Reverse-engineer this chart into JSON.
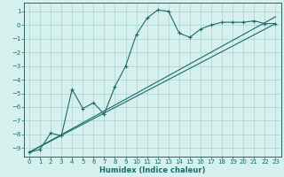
{
  "xlabel": "Humidex (Indice chaleur)",
  "bg_color": "#d6f0ee",
  "grid_color": "#b2d8d4",
  "line_color": "#1a6b6b",
  "xlim": [
    -0.5,
    23.5
  ],
  "ylim": [
    -9.6,
    1.6
  ],
  "yticks": [
    1,
    0,
    -1,
    -2,
    -3,
    -4,
    -5,
    -6,
    -7,
    -8,
    -9
  ],
  "xticks": [
    0,
    1,
    2,
    3,
    4,
    5,
    6,
    7,
    8,
    9,
    10,
    11,
    12,
    13,
    14,
    15,
    16,
    17,
    18,
    19,
    20,
    21,
    22,
    23
  ],
  "line1_x": [
    0,
    1,
    2,
    3,
    4,
    5,
    6,
    7,
    8,
    9,
    10,
    11,
    12,
    13,
    14,
    15,
    16,
    17,
    18,
    19,
    20,
    21,
    22,
    23
  ],
  "line1_y": [
    -9.3,
    -9.1,
    -7.9,
    -8.1,
    -4.7,
    -6.1,
    -5.7,
    -6.5,
    -4.5,
    -3.0,
    -0.7,
    0.5,
    1.1,
    1.0,
    -0.6,
    -0.9,
    -0.3,
    0.0,
    0.2,
    0.2,
    0.2,
    0.3,
    0.1,
    0.1
  ],
  "ref_line1": {
    "x": [
      0,
      23
    ],
    "y": [
      -9.3,
      0.1
    ]
  },
  "ref_line2": {
    "x": [
      0,
      23
    ],
    "y": [
      -9.3,
      0.6
    ]
  },
  "tick_fontsize": 5.0,
  "xlabel_fontsize": 6.0
}
